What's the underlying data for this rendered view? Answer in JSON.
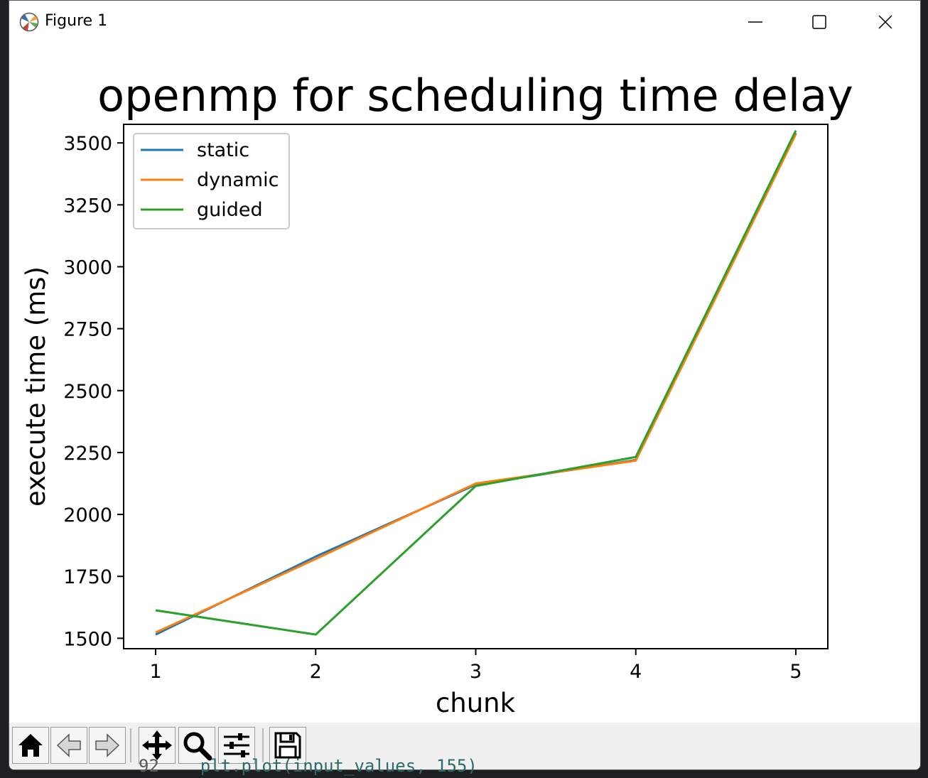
{
  "window": {
    "title": "Figure 1",
    "controls": {
      "minimize": "minimize",
      "maximize": "maximize",
      "close": "close"
    }
  },
  "background_code": {
    "line_number": "92",
    "text": "plt.plot(input_values, 155)"
  },
  "toolbar": {
    "buttons": [
      {
        "name": "home",
        "icon": "home-icon"
      },
      {
        "name": "back",
        "icon": "back-arrow-icon"
      },
      {
        "name": "forward",
        "icon": "forward-arrow-icon"
      },
      {
        "name": "pan",
        "icon": "move-icon"
      },
      {
        "name": "zoom",
        "icon": "magnifier-icon"
      },
      {
        "name": "configure-subplots",
        "icon": "sliders-icon"
      },
      {
        "name": "save",
        "icon": "floppy-disk-icon"
      }
    ]
  },
  "chart_data": {
    "type": "line",
    "title": "openmp for scheduling time delay",
    "xlabel": "chunk",
    "ylabel": "execute time (ms)",
    "x": [
      1,
      2,
      3,
      4,
      5
    ],
    "xticks": [
      "1",
      "2",
      "3",
      "4",
      "5"
    ],
    "yticks": [
      "1500",
      "1750",
      "2000",
      "2250",
      "2500",
      "2750",
      "3000",
      "3250",
      "3500"
    ],
    "xlim": [
      0.8,
      5.2
    ],
    "ylim": [
      1458,
      3575
    ],
    "legend_position": "upper-left",
    "grid": false,
    "series": [
      {
        "name": "static",
        "color": "#1f77b4",
        "values": [
          1515,
          1830,
          2120,
          2220,
          3540
        ]
      },
      {
        "name": "dynamic",
        "color": "#ff7f0e",
        "values": [
          1523,
          1820,
          2125,
          2217,
          3535
        ]
      },
      {
        "name": "guided",
        "color": "#2ca02c",
        "values": [
          1613,
          1515,
          2115,
          2232,
          3550
        ]
      }
    ]
  }
}
